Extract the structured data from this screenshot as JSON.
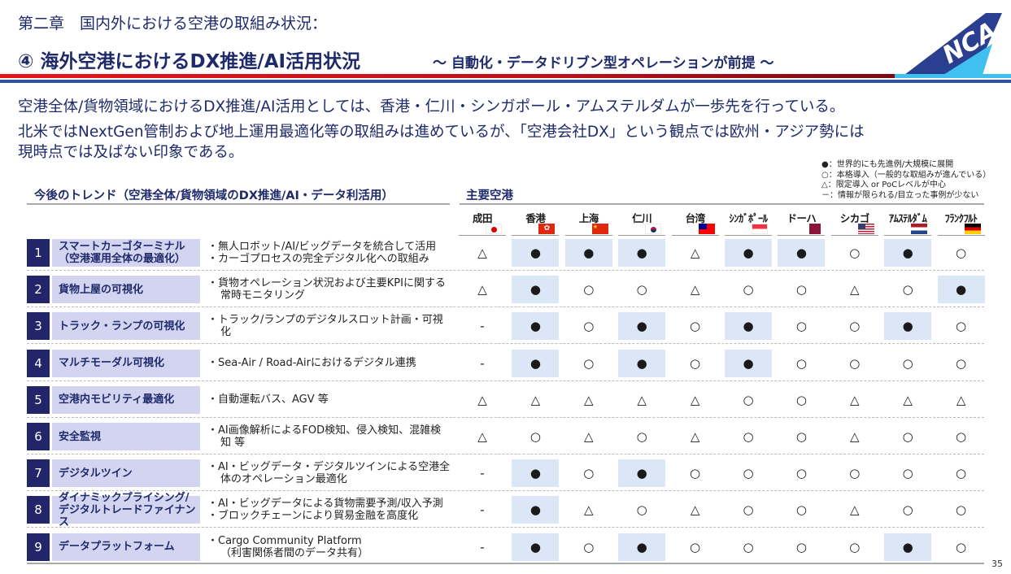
{
  "header": {
    "chapter": "第二章　国内外における空港の取組み状況：",
    "title": "④ 海外空港におけるDX推進/AI活用状況",
    "subtitle": "～ 自動化・データドリブン型オペレーションが前提 ～",
    "logo_text": "NCA"
  },
  "intro": [
    "空港全体/貨物領域におけるDX推進/AI活用としては、香港・仁川・シンガポール・アムステルダムが一歩先を行っている。",
    "北米ではNextGen管制および地上運用最適化等の取組みは進めているが、「空港会社DX」という観点では欧州・アジア勢には",
    "現時点では及ばない印象である。"
  ],
  "legend": [
    "●：世界的にも先進例/大規模に展開",
    "○：本格導入（一般的な取組みが進んでいる）",
    "△：限定導入 or PoCレベルが中心",
    "－：情報が限られる/目立った事例が少ない"
  ],
  "table": {
    "trend_header": "今後のトレンド（空港全体/貨物領域のDX推進/AI・データ利活用）",
    "airport_header": "主要空港",
    "airports": [
      {
        "name": "成田",
        "flag": "japan-flag-icon"
      },
      {
        "name": "香港",
        "flag": "hong-kong-flag-icon"
      },
      {
        "name": "上海",
        "flag": "china-flag-icon"
      },
      {
        "name": "仁川",
        "flag": "korea-flag-icon"
      },
      {
        "name": "台湾",
        "flag": "taiwan-flag-icon"
      },
      {
        "name": "ｼﾝｶﾞﾎﾟｰﾙ",
        "flag": "singapore-flag-icon"
      },
      {
        "name": "ドーハ",
        "flag": "qatar-flag-icon"
      },
      {
        "name": "シカゴ",
        "flag": "usa-flag-icon"
      },
      {
        "name": "ｱﾑｽﾃﾙﾀﾞﾑ",
        "flag": "netherlands-flag-icon"
      },
      {
        "name": "ﾌﾗﾝｸﾌﾙﾄ",
        "flag": "germany-flag-icon"
      }
    ],
    "rows": [
      {
        "num": "1",
        "label": [
          "スマートカーゴターミナル",
          "（空港運用全体の最適化）"
        ],
        "bullets": [
          "無人ロボット/AI/ビッグデータを統合して活用",
          "カーゴプロセスの完全デジタル化への取組み"
        ],
        "marks": [
          "△",
          "●",
          "●",
          "●",
          "△",
          "●",
          "●",
          "○",
          "●",
          "○"
        ]
      },
      {
        "num": "2",
        "label": [
          "貨物上屋の可視化"
        ],
        "bullets": [
          "貨物オペレーション状況および主要KPIに関する常時モニタリング"
        ],
        "marks": [
          "△",
          "●",
          "○",
          "○",
          "△",
          "○",
          "○",
          "△",
          "○",
          "●"
        ]
      },
      {
        "num": "3",
        "label": [
          "トラック・ランプの可視化"
        ],
        "bullets": [
          "トラック/ランプのデジタルスロット計画・可視化"
        ],
        "marks": [
          "-",
          "●",
          "○",
          "●",
          "○",
          "●",
          "○",
          "○",
          "●",
          "○"
        ]
      },
      {
        "num": "4",
        "label": [
          "マルチモーダル可視化"
        ],
        "bullets": [
          "Sea-Air / Road-Airにおけるデジタル連携"
        ],
        "marks": [
          "-",
          "●",
          "○",
          "●",
          "○",
          "●",
          "○",
          "○",
          "○",
          "○"
        ]
      },
      {
        "num": "5",
        "label": [
          "空港内モビリティ最適化"
        ],
        "bullets": [
          "自動運転バス、AGV 等"
        ],
        "marks": [
          "△",
          "△",
          "△",
          "△",
          "△",
          "○",
          "○",
          "△",
          "△",
          "△"
        ]
      },
      {
        "num": "6",
        "label": [
          "安全監視"
        ],
        "bullets": [
          "AI画像解析によるFOD検知、侵入検知、混雑検知 等"
        ],
        "marks": [
          "△",
          "○",
          "△",
          "○",
          "△",
          "○",
          "○",
          "△",
          "○",
          "○"
        ]
      },
      {
        "num": "7",
        "label": [
          "デジタルツイン"
        ],
        "bullets": [
          "AI・ビッグデータ・デジタルツインによる空港全体のオペレーション最適化"
        ],
        "marks": [
          "-",
          "●",
          "○",
          "●",
          "○",
          "○",
          "○",
          "○",
          "○",
          "○"
        ]
      },
      {
        "num": "8",
        "label": [
          "ダイナミックプライシング/",
          "デジタルトレードファイナンス"
        ],
        "bullets": [
          "AI・ビッグデータによる貨物需要予測/収入予測",
          "ブロックチェーンにより貿易金融を高度化"
        ],
        "marks": [
          "-",
          "●",
          "△",
          "○",
          "△",
          "○",
          "○",
          "△",
          "○",
          "○"
        ]
      },
      {
        "num": "9",
        "label": [
          "データプラットフォーム"
        ],
        "bullets": [
          "Cargo Community Platform\n（利害関係者間のデータ共有）"
        ],
        "marks": [
          "-",
          "●",
          "○",
          "●",
          "○",
          "○",
          "○",
          "○",
          "●",
          "○"
        ]
      }
    ]
  },
  "page_number": "35"
}
